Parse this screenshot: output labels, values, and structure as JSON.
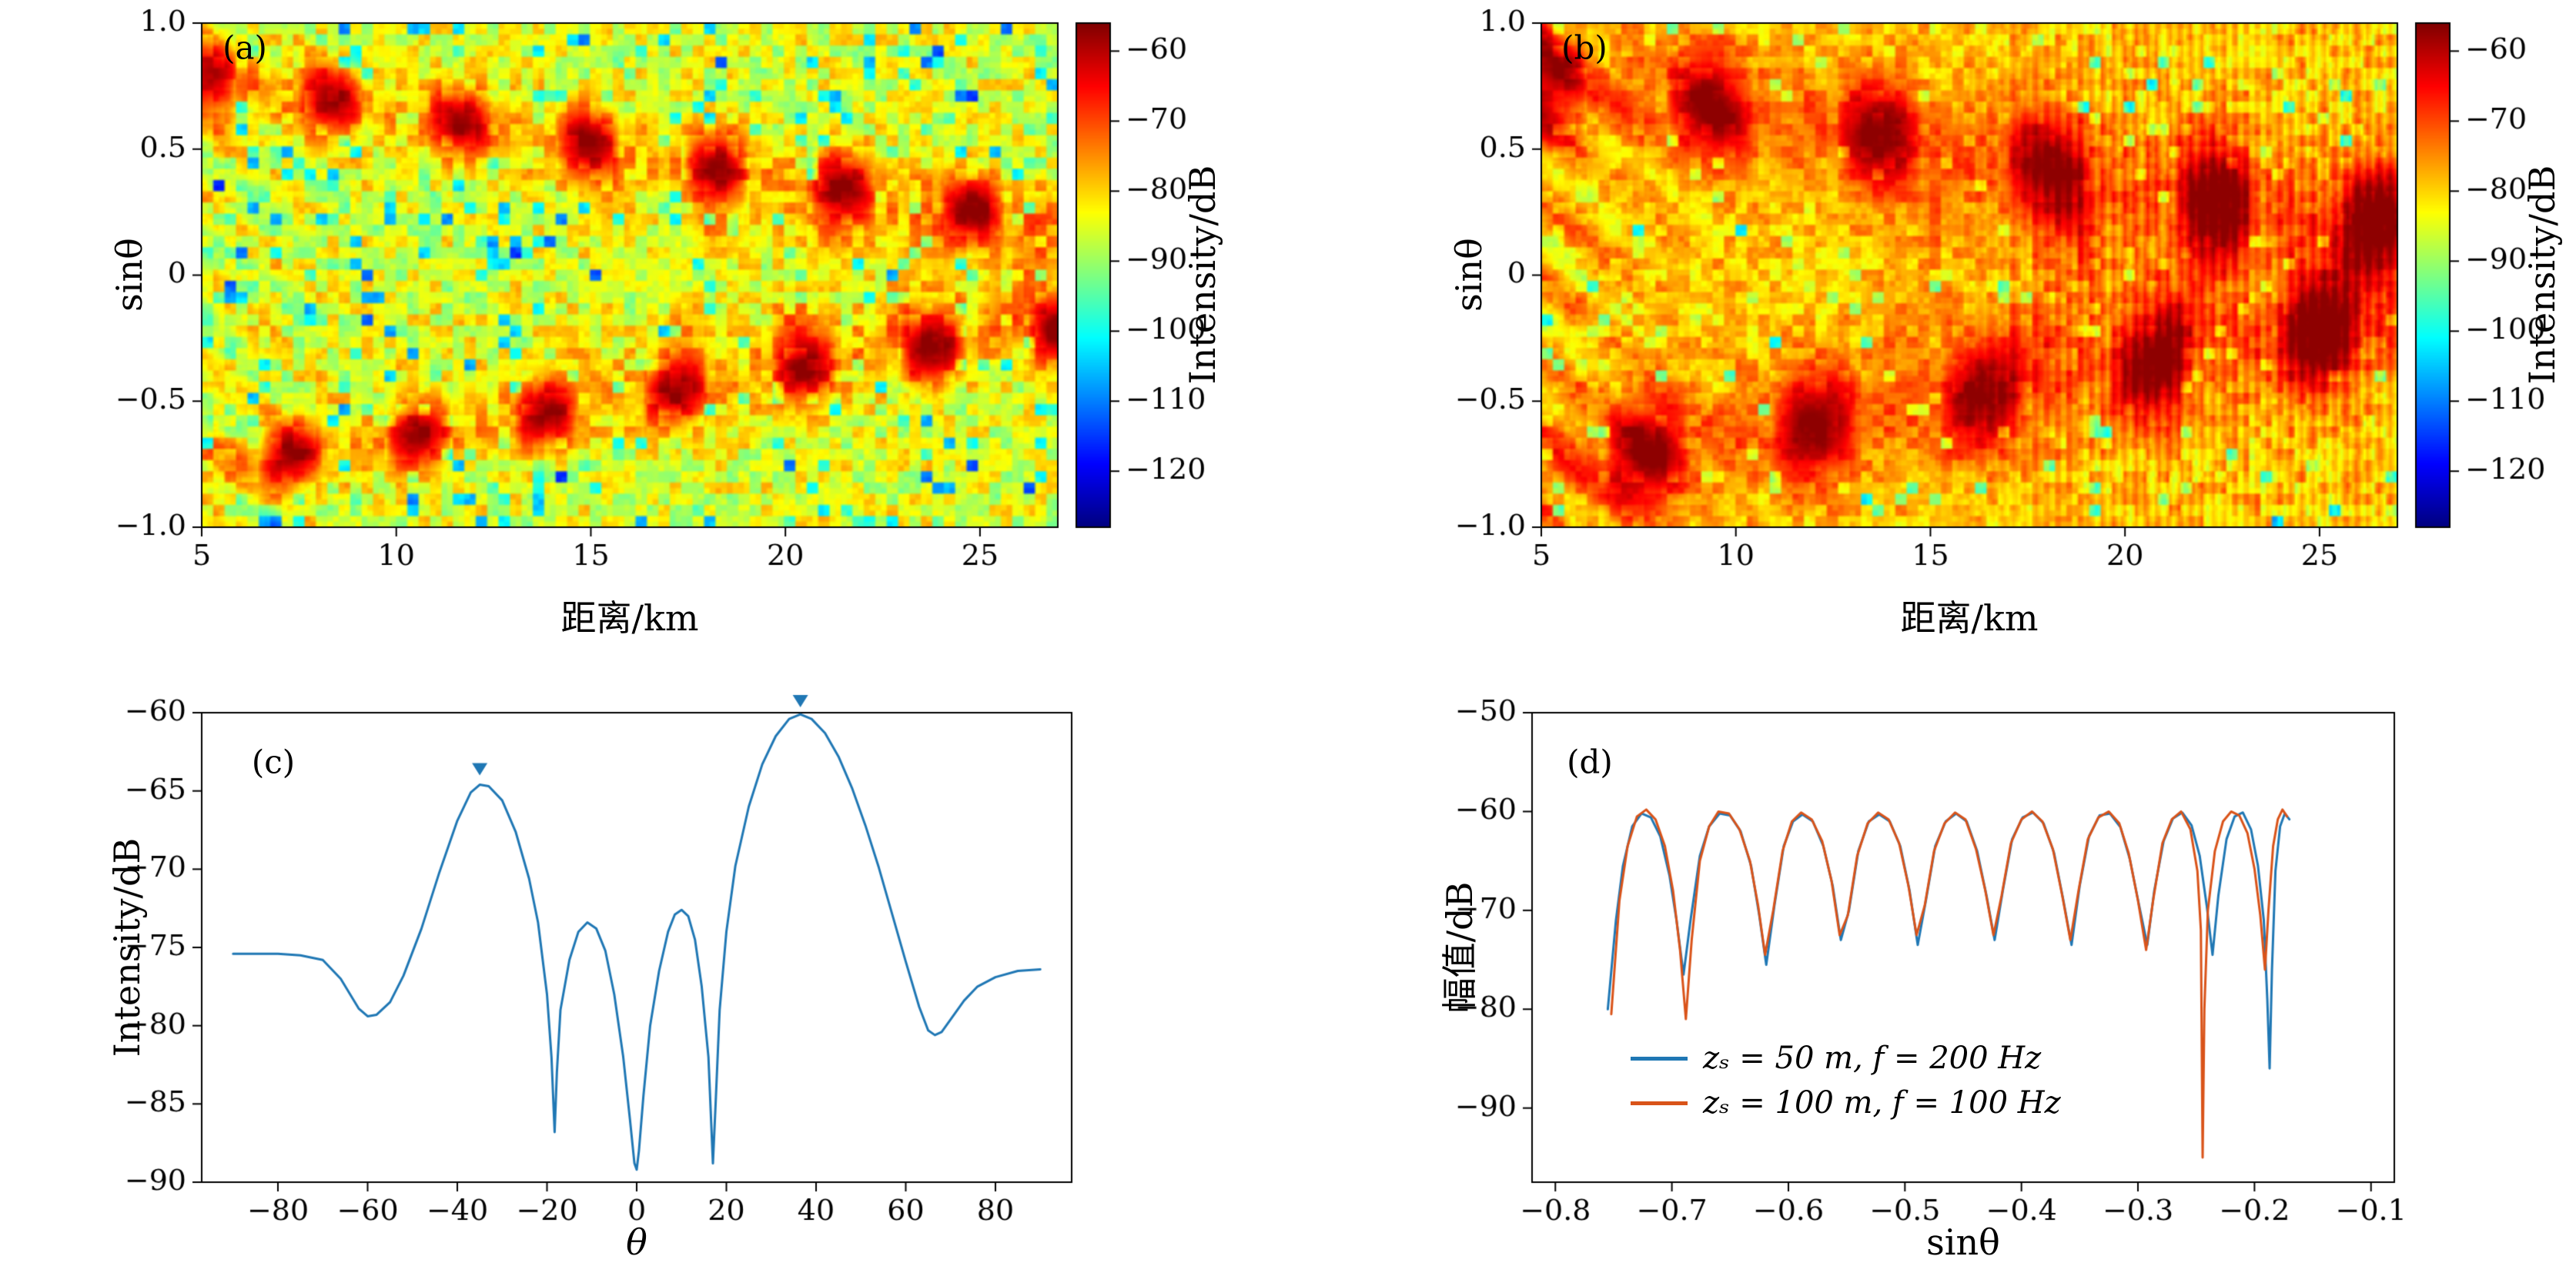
{
  "figure": {
    "background": "#ffffff"
  },
  "chart_data": [
    {
      "type": "heatmap",
      "panel_label": "(a)",
      "xlabel": "距离/km",
      "ylabel": "sinθ",
      "x_range": [
        5,
        27
      ],
      "y_range": [
        -1,
        1
      ],
      "x_ticks": [
        5,
        10,
        15,
        20,
        25
      ],
      "y_ticks": [
        1.0,
        0.5,
        0,
        -0.5,
        -1.0
      ],
      "y_tick_labels": [
        "1.0",
        "0.5",
        "0",
        "-0.5",
        "-1.0"
      ],
      "colorbar": {
        "label": "Intensity/dB",
        "ticks": [
          -60,
          -70,
          -80,
          -90,
          -100,
          -110,
          -120
        ],
        "vmin": -128,
        "vmax": -56,
        "colormap": "jet"
      },
      "description": "Interference striation pattern: two chains of high-intensity lobes (~-60 dB) starting near sin-theta = +/-0.75 at 5 km and converging to ~+/-0.25 by 27 km, over a ~-82 dB yellow background speckled with ~-105 dB nulls",
      "synthesis": {
        "base": -85,
        "gain": 28,
        "bandStart": 0.78,
        "bandSlope": -0.026,
        "minC": 0.22,
        "bandWidth": 0.1,
        "blobFreq": 1.9,
        "blobPhase": 2.0,
        "inner": 0.3,
        "noiseAmp": 7,
        "speckleThresh": 0.86,
        "speckleDepth": -26,
        "fan": 5,
        "stripes": 0,
        "seed": 7
      }
    },
    {
      "type": "heatmap",
      "panel_label": "(b)",
      "xlabel": "距离/km",
      "ylabel": "sinθ",
      "x_range": [
        5,
        27
      ],
      "y_range": [
        -1,
        1
      ],
      "x_ticks": [
        5,
        10,
        15,
        20,
        25
      ],
      "y_ticks": [
        1.0,
        0.5,
        0,
        -0.5,
        -1.0
      ],
      "y_tick_labels": [
        "1.0",
        "0.5",
        "0",
        "-0.5",
        "-1.0"
      ],
      "colorbar": {
        "label": "Intensity/dB",
        "ticks": [
          -60,
          -70,
          -80,
          -90,
          -100,
          -110,
          -120
        ],
        "vmin": -128,
        "vmax": -56,
        "colormap": "jet"
      },
      "description": "Same striation geometry as (a) but with broader, more merged dark-red lobes, an overall redder (~-78 dB) background, fewer cyan nulls and fine vertical striping beyond ~17 km",
      "synthesis": {
        "base": -79,
        "gain": 23,
        "bandStart": 0.78,
        "bandSlope": -0.026,
        "minC": 0.24,
        "bandWidth": 0.16,
        "blobFreq": 1.45,
        "blobPhase": 2.4,
        "inner": 0.35,
        "noiseAmp": 5,
        "speckleThresh": 0.93,
        "speckleDepth": -22,
        "fan": 6,
        "stripes": 1,
        "seed": 13
      }
    },
    {
      "type": "line",
      "panel_label": "(c)",
      "xlabel": "θ",
      "ylabel": "Intensity/dB",
      "x_range": [
        -97,
        97
      ],
      "y_range": [
        -90,
        -60
      ],
      "x_ticks": [
        -80,
        -60,
        -40,
        -20,
        0,
        20,
        40,
        60,
        80
      ],
      "y_ticks": [
        -90,
        -85,
        -80,
        -75,
        -70,
        -65,
        -60
      ],
      "line_color": "#1f77b4",
      "points": [
        [
          -90,
          -75.4
        ],
        [
          -85,
          -75.4
        ],
        [
          -80,
          -75.4
        ],
        [
          -75,
          -75.5
        ],
        [
          -70,
          -75.8
        ],
        [
          -66,
          -77
        ],
        [
          -62,
          -78.9
        ],
        [
          -60,
          -79.4
        ],
        [
          -58,
          -79.3
        ],
        [
          -55,
          -78.5
        ],
        [
          -52,
          -76.8
        ],
        [
          -48,
          -73.8
        ],
        [
          -44,
          -70.2
        ],
        [
          -40,
          -66.9
        ],
        [
          -37,
          -65.1
        ],
        [
          -35,
          -64.6
        ],
        [
          -33,
          -64.7
        ],
        [
          -30,
          -65.6
        ],
        [
          -27,
          -67.6
        ],
        [
          -24,
          -70.6
        ],
        [
          -22,
          -73.4
        ],
        [
          -20,
          -78
        ],
        [
          -19,
          -82
        ],
        [
          -18.3,
          -86.8
        ],
        [
          -17.8,
          -83
        ],
        [
          -17,
          -79
        ],
        [
          -15,
          -75.8
        ],
        [
          -13,
          -74
        ],
        [
          -11,
          -73.4
        ],
        [
          -9,
          -73.8
        ],
        [
          -7,
          -75.2
        ],
        [
          -5,
          -78
        ],
        [
          -3,
          -82
        ],
        [
          -1.5,
          -86
        ],
        [
          -0.5,
          -88.8
        ],
        [
          0,
          -89.2
        ],
        [
          0.5,
          -88
        ],
        [
          1.5,
          -84.5
        ],
        [
          3,
          -80
        ],
        [
          5,
          -76.5
        ],
        [
          7,
          -74
        ],
        [
          8.5,
          -72.9
        ],
        [
          10,
          -72.6
        ],
        [
          11.5,
          -73
        ],
        [
          13,
          -74.5
        ],
        [
          14.5,
          -77.5
        ],
        [
          16,
          -82
        ],
        [
          17,
          -88.8
        ],
        [
          17.6,
          -85
        ],
        [
          18.5,
          -79
        ],
        [
          20,
          -74
        ],
        [
          22,
          -69.8
        ],
        [
          25,
          -66
        ],
        [
          28,
          -63.3
        ],
        [
          31,
          -61.5
        ],
        [
          34,
          -60.4
        ],
        [
          36.5,
          -60.1
        ],
        [
          39,
          -60.4
        ],
        [
          42,
          -61.3
        ],
        [
          45,
          -62.8
        ],
        [
          48,
          -64.8
        ],
        [
          51,
          -67.2
        ],
        [
          54,
          -69.9
        ],
        [
          57,
          -72.9
        ],
        [
          60,
          -75.9
        ],
        [
          63,
          -78.8
        ],
        [
          65,
          -80.3
        ],
        [
          66.5,
          -80.6
        ],
        [
          68,
          -80.4
        ],
        [
          70,
          -79.6
        ],
        [
          73,
          -78.4
        ],
        [
          76,
          -77.5
        ],
        [
          80,
          -76.9
        ],
        [
          85,
          -76.5
        ],
        [
          90,
          -76.4
        ]
      ],
      "markers": {
        "symbol": "triangle-down",
        "color": "#1f77b4",
        "points": [
          [
            -35,
            -64.5
          ],
          [
            36.5,
            -60.15
          ]
        ]
      }
    },
    {
      "type": "line",
      "panel_label": "(d)",
      "xlabel": "sinθ",
      "ylabel": "幅值/dB",
      "x_range": [
        -0.82,
        -0.08
      ],
      "y_range": [
        -97.5,
        -50
      ],
      "x_ticks": [
        -0.8,
        -0.7,
        -0.6,
        -0.5,
        -0.4,
        -0.3,
        -0.2,
        -0.1
      ],
      "x_tick_labels": [
        "-0.8",
        "-0.7",
        "-0.6",
        "-0.5",
        "-0.4",
        "-0.3",
        "-0.2",
        "-0.1"
      ],
      "y_ticks": [
        -50,
        -60,
        -70,
        -80,
        -90
      ],
      "legend_position": "lower-left",
      "series": [
        {
          "name": "zₛ = 50 m,  f = 200 Hz",
          "color": "#1f77b4",
          "points": [
            [
              -0.755,
              -80
            ],
            [
              -0.748,
              -71
            ],
            [
              -0.742,
              -65.5
            ],
            [
              -0.734,
              -61.5
            ],
            [
              -0.726,
              -60.2
            ],
            [
              -0.718,
              -60.6
            ],
            [
              -0.71,
              -62.5
            ],
            [
              -0.702,
              -66.5
            ],
            [
              -0.696,
              -71
            ],
            [
              -0.69,
              -76.5
            ],
            [
              -0.684,
              -71
            ],
            [
              -0.676,
              -64.5
            ],
            [
              -0.668,
              -61.5
            ],
            [
              -0.659,
              -60.2
            ],
            [
              -0.65,
              -60.4
            ],
            [
              -0.641,
              -62
            ],
            [
              -0.632,
              -65.5
            ],
            [
              -0.625,
              -70.5
            ],
            [
              -0.619,
              -75.5
            ],
            [
              -0.612,
              -69.5
            ],
            [
              -0.604,
              -63.5
            ],
            [
              -0.596,
              -61
            ],
            [
              -0.588,
              -60.3
            ],
            [
              -0.579,
              -61
            ],
            [
              -0.57,
              -63.5
            ],
            [
              -0.562,
              -67.5
            ],
            [
              -0.555,
              -73
            ],
            [
              -0.548,
              -70
            ],
            [
              -0.54,
              -64
            ],
            [
              -0.531,
              -61
            ],
            [
              -0.522,
              -60.3
            ],
            [
              -0.513,
              -61
            ],
            [
              -0.504,
              -63.5
            ],
            [
              -0.496,
              -68
            ],
            [
              -0.489,
              -73.5
            ],
            [
              -0.482,
              -69
            ],
            [
              -0.474,
              -63.5
            ],
            [
              -0.465,
              -61
            ],
            [
              -0.456,
              -60.2
            ],
            [
              -0.447,
              -61
            ],
            [
              -0.438,
              -64
            ],
            [
              -0.43,
              -68.5
            ],
            [
              -0.423,
              -73
            ],
            [
              -0.416,
              -68
            ],
            [
              -0.408,
              -62.8
            ],
            [
              -0.399,
              -60.6
            ],
            [
              -0.39,
              -60.1
            ],
            [
              -0.381,
              -61.2
            ],
            [
              -0.372,
              -64.2
            ],
            [
              -0.364,
              -69
            ],
            [
              -0.357,
              -73.5
            ],
            [
              -0.35,
              -67.5
            ],
            [
              -0.342,
              -62.5
            ],
            [
              -0.333,
              -60.4
            ],
            [
              -0.324,
              -60.2
            ],
            [
              -0.315,
              -61.6
            ],
            [
              -0.307,
              -64.8
            ],
            [
              -0.299,
              -69.5
            ],
            [
              -0.292,
              -73.5
            ],
            [
              -0.286,
              -68
            ],
            [
              -0.278,
              -63
            ],
            [
              -0.27,
              -60.7
            ],
            [
              -0.262,
              -60.1
            ],
            [
              -0.254,
              -61.4
            ],
            [
              -0.247,
              -64.5
            ],
            [
              -0.241,
              -69.5
            ],
            [
              -0.236,
              -74.5
            ],
            [
              -0.231,
              -68.5
            ],
            [
              -0.224,
              -62.8
            ],
            [
              -0.217,
              -60.5
            ],
            [
              -0.21,
              -60.1
            ],
            [
              -0.203,
              -61.8
            ],
            [
              -0.197,
              -65.5
            ],
            [
              -0.192,
              -71
            ],
            [
              -0.189,
              -79
            ],
            [
              -0.187,
              -86
            ],
            [
              -0.185,
              -76
            ],
            [
              -0.182,
              -66
            ],
            [
              -0.178,
              -61.5
            ],
            [
              -0.174,
              -60.2
            ],
            [
              -0.17,
              -60.8
            ]
          ]
        },
        {
          "name": "zₛ = 100 m,  f = 100 Hz",
          "color": "#d95319",
          "points": [
            [
              -0.752,
              -80.5
            ],
            [
              -0.745,
              -69
            ],
            [
              -0.738,
              -63.5
            ],
            [
              -0.73,
              -60.5
            ],
            [
              -0.722,
              -59.8
            ],
            [
              -0.714,
              -60.8
            ],
            [
              -0.706,
              -63.5
            ],
            [
              -0.699,
              -68
            ],
            [
              -0.693,
              -74
            ],
            [
              -0.688,
              -81
            ],
            [
              -0.683,
              -73
            ],
            [
              -0.676,
              -65
            ],
            [
              -0.668,
              -61.5
            ],
            [
              -0.66,
              -60
            ],
            [
              -0.651,
              -60.2
            ],
            [
              -0.642,
              -61.8
            ],
            [
              -0.633,
              -65
            ],
            [
              -0.626,
              -69.5
            ],
            [
              -0.62,
              -74.5
            ],
            [
              -0.613,
              -70
            ],
            [
              -0.605,
              -64
            ],
            [
              -0.597,
              -61
            ],
            [
              -0.589,
              -60.1
            ],
            [
              -0.58,
              -60.8
            ],
            [
              -0.571,
              -63
            ],
            [
              -0.563,
              -67
            ],
            [
              -0.556,
              -72.5
            ],
            [
              -0.549,
              -70.5
            ],
            [
              -0.541,
              -64.5
            ],
            [
              -0.532,
              -61.2
            ],
            [
              -0.523,
              -60.1
            ],
            [
              -0.514,
              -60.8
            ],
            [
              -0.505,
              -63.2
            ],
            [
              -0.497,
              -67.5
            ],
            [
              -0.49,
              -72.5
            ],
            [
              -0.483,
              -69.5
            ],
            [
              -0.475,
              -64
            ],
            [
              -0.466,
              -61.2
            ],
            [
              -0.457,
              -60.1
            ],
            [
              -0.448,
              -60.8
            ],
            [
              -0.439,
              -63.8
            ],
            [
              -0.431,
              -68
            ],
            [
              -0.424,
              -72.5
            ],
            [
              -0.417,
              -68.5
            ],
            [
              -0.409,
              -63.2
            ],
            [
              -0.4,
              -60.8
            ],
            [
              -0.391,
              -60
            ],
            [
              -0.382,
              -61
            ],
            [
              -0.373,
              -63.8
            ],
            [
              -0.365,
              -68.5
            ],
            [
              -0.358,
              -73
            ],
            [
              -0.351,
              -68
            ],
            [
              -0.343,
              -62.8
            ],
            [
              -0.334,
              -60.6
            ],
            [
              -0.325,
              -60
            ],
            [
              -0.316,
              -61.2
            ],
            [
              -0.308,
              -64.2
            ],
            [
              -0.3,
              -69
            ],
            [
              -0.293,
              -74
            ],
            [
              -0.287,
              -69
            ],
            [
              -0.279,
              -63.2
            ],
            [
              -0.271,
              -60.8
            ],
            [
              -0.263,
              -60
            ],
            [
              -0.255,
              -61.8
            ],
            [
              -0.249,
              -66
            ],
            [
              -0.246,
              -72
            ],
            [
              -0.2445,
              -95
            ],
            [
              -0.243,
              -80
            ],
            [
              -0.24,
              -70
            ],
            [
              -0.234,
              -64
            ],
            [
              -0.227,
              -61
            ],
            [
              -0.22,
              -60
            ],
            [
              -0.213,
              -60.4
            ],
            [
              -0.206,
              -62.2
            ],
            [
              -0.2,
              -65.8
            ],
            [
              -0.195,
              -70.5
            ],
            [
              -0.191,
              -76
            ],
            [
              -0.188,
              -70
            ],
            [
              -0.184,
              -63.5
            ],
            [
              -0.18,
              -60.8
            ],
            [
              -0.176,
              -59.8
            ],
            [
              -0.172,
              -60.5
            ]
          ]
        }
      ]
    }
  ]
}
